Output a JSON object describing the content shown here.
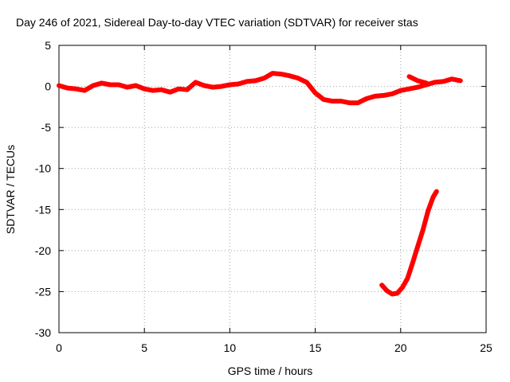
{
  "chart_data": {
    "type": "line",
    "title": "Day 246 of 2021, Sidereal Day-to-day VTEC variation (SDTVAR) for receiver stas",
    "xlabel": "GPS time / hours",
    "ylabel": "SDTVAR / TECUs",
    "xlim": [
      0,
      25
    ],
    "ylim": [
      -30,
      5
    ],
    "xticks": [
      0,
      5,
      10,
      15,
      20,
      25
    ],
    "yticks": [
      5,
      0,
      -5,
      -10,
      -15,
      -20,
      -25,
      -30
    ],
    "grid": true,
    "legend": "none",
    "color": "#ff0000",
    "series": [
      {
        "name": "main",
        "x": [
          0,
          0.5,
          1,
          1.5,
          2,
          2.5,
          3,
          3.5,
          4,
          4.5,
          5,
          5.5,
          6,
          6.5,
          7,
          7.5,
          8,
          8.5,
          9,
          9.5,
          10,
          10.5,
          11,
          11.5,
          12,
          12.5,
          13,
          13.5,
          14,
          14.5,
          15,
          15.5,
          16,
          16.5,
          17,
          17.5,
          18,
          18.5,
          19,
          19.5,
          20,
          20.5,
          21,
          21.5,
          22,
          22.5,
          23,
          23.5
        ],
        "y": [
          0.1,
          -0.2,
          -0.3,
          -0.5,
          0.1,
          0.4,
          0.2,
          0.2,
          -0.1,
          0.1,
          -0.3,
          -0.5,
          -0.4,
          -0.7,
          -0.3,
          -0.4,
          0.5,
          0.1,
          -0.1,
          0,
          0.2,
          0.3,
          0.6,
          0.7,
          1.0,
          1.6,
          1.5,
          1.3,
          1.0,
          0.5,
          -0.8,
          -1.6,
          -1.8,
          -1.8,
          -2.0,
          -2.0,
          -1.5,
          -1.2,
          -1.1,
          -0.9,
          -0.5,
          -0.3,
          -0.1,
          0.2,
          0.5,
          0.6,
          0.9,
          0.7
        ]
      },
      {
        "name": "upper-branch",
        "x": [
          20.5,
          21,
          21.5
        ],
        "y": [
          1.2,
          0.7,
          0.4
        ]
      },
      {
        "name": "descending-arc",
        "x": [
          18.9,
          19.2,
          19.5,
          19.8,
          20.1,
          20.4,
          20.7,
          21.0,
          21.3,
          21.6,
          21.9,
          22.1
        ],
        "y": [
          -24.2,
          -24.9,
          -25.3,
          -25.2,
          -24.5,
          -23.4,
          -21.5,
          -19.5,
          -17.5,
          -15.2,
          -13.5,
          -12.8
        ]
      }
    ]
  }
}
